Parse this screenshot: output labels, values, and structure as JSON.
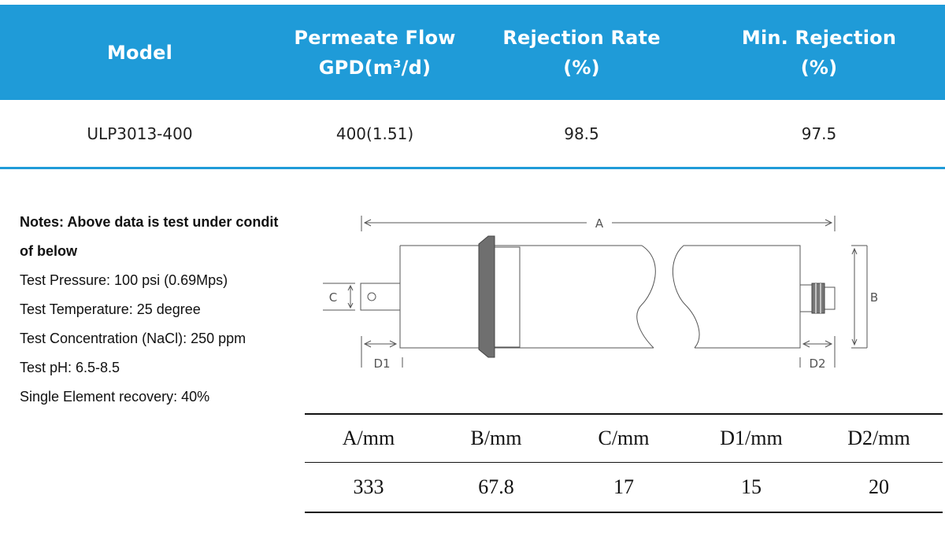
{
  "spec_table": {
    "headers": [
      {
        "line1": "Model",
        "line2": ""
      },
      {
        "line1": "Permeate Flow",
        "line2": "GPD(m³/d)"
      },
      {
        "line1": "Rejection Rate",
        "line2": "(%)"
      },
      {
        "line1": "Min. Rejection",
        "line2": "(%)"
      }
    ],
    "row": [
      "ULP3013-400",
      "400(1.51)",
      "98.5",
      "97.5"
    ],
    "colors": {
      "header_bg": "#1f9bd8",
      "header_text": "#ffffff"
    }
  },
  "notes": {
    "title_line1": "Notes: Above data is test under condit",
    "title_line2": "of below",
    "lines": [
      "Test Pressure: 100 psi (0.69Mps)",
      "Test Temperature: 25 degree",
      "Test Concentration (NaCl): 250 ppm",
      "Test pH: 6.5-8.5",
      "Single Element recovery: 40%"
    ]
  },
  "drawing": {
    "labels": {
      "a": "A",
      "b": "B",
      "c": "C",
      "d1": "D1",
      "d2": "D2"
    }
  },
  "dimensions": {
    "headers": [
      "A/mm",
      "B/mm",
      "C/mm",
      "D1/mm",
      "D2/mm"
    ],
    "values": [
      "333",
      "67.8",
      "17",
      "15",
      "20"
    ]
  }
}
